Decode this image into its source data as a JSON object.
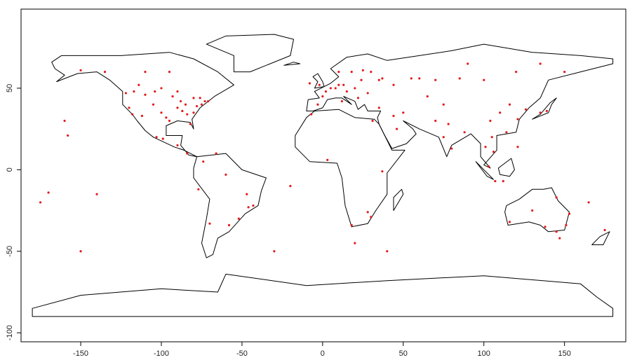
{
  "chart_data": {
    "type": "scatter",
    "color": "#e31a1c",
    "x": [
      -120,
      -118,
      -112,
      -105,
      -100,
      -97,
      -95,
      -90,
      -88,
      -85,
      -84,
      -82,
      -80,
      -78,
      -75,
      -73,
      -71,
      -87,
      -93,
      -104,
      -110,
      -122,
      -117,
      -114,
      -100,
      -90,
      -80,
      -76,
      -150,
      -135,
      -110,
      -95,
      -103,
      -99,
      -90,
      -84,
      -74,
      -66,
      -47,
      -43,
      -46,
      -58,
      -70,
      -77,
      -60,
      -52,
      -3,
      2,
      5,
      8,
      10,
      13,
      15,
      20,
      24,
      12,
      18,
      25,
      30,
      10,
      -8,
      -2,
      0,
      22,
      28,
      35,
      37,
      44,
      55,
      60,
      70,
      85,
      100,
      120,
      135,
      150,
      90,
      65,
      75,
      70,
      78,
      75,
      80,
      88,
      104,
      110,
      116,
      121,
      114,
      126,
      135,
      139,
      105,
      101,
      106,
      121,
      103,
      107,
      112,
      50,
      44,
      35,
      46,
      -7,
      31,
      28,
      18,
      30,
      37,
      3,
      151,
      145,
      153,
      116,
      138,
      147,
      130,
      145,
      175,
      -158,
      -175,
      -140,
      -170,
      -20,
      -150,
      -160,
      40,
      165,
      -30,
      20
    ],
    "values": [
      38,
      34,
      33,
      40,
      35,
      32,
      30,
      38,
      42,
      40,
      34,
      28,
      35,
      39,
      40,
      42,
      42,
      36,
      45,
      48,
      46,
      47,
      48,
      52,
      50,
      48,
      44,
      44,
      61,
      60,
      60,
      60,
      20,
      19,
      15,
      10,
      5,
      10,
      -15,
      -22,
      -23,
      -34,
      -33,
      -12,
      -3,
      -30,
      40,
      48,
      50,
      50,
      52,
      52,
      48,
      50,
      55,
      42,
      60,
      61,
      60,
      60,
      53,
      52,
      45,
      44,
      47,
      55,
      56,
      52,
      56,
      56,
      55,
      56,
      55,
      60,
      65,
      60,
      65,
      45,
      40,
      30,
      28,
      20,
      13,
      23,
      30,
      35,
      40,
      31,
      23,
      37,
      35,
      36,
      20,
      14,
      11,
      14,
      2,
      -7,
      -7,
      35,
      33,
      38,
      25,
      34,
      30,
      -26,
      -34,
      -29,
      -1,
      6,
      -34,
      -38,
      -27,
      -32,
      -35,
      -42,
      -25,
      -17,
      -37,
      21,
      -20,
      -15,
      -14,
      -10,
      -50,
      30,
      -50,
      -20,
      -50,
      -45
    ],
    "xlim": [
      -187,
      188
    ],
    "ylim": [
      -105.5,
      98.5
    ],
    "xticks": [
      -150,
      -100,
      -50,
      0,
      50,
      100,
      150
    ],
    "yticks": [
      -100,
      -50,
      0,
      50
    ]
  }
}
